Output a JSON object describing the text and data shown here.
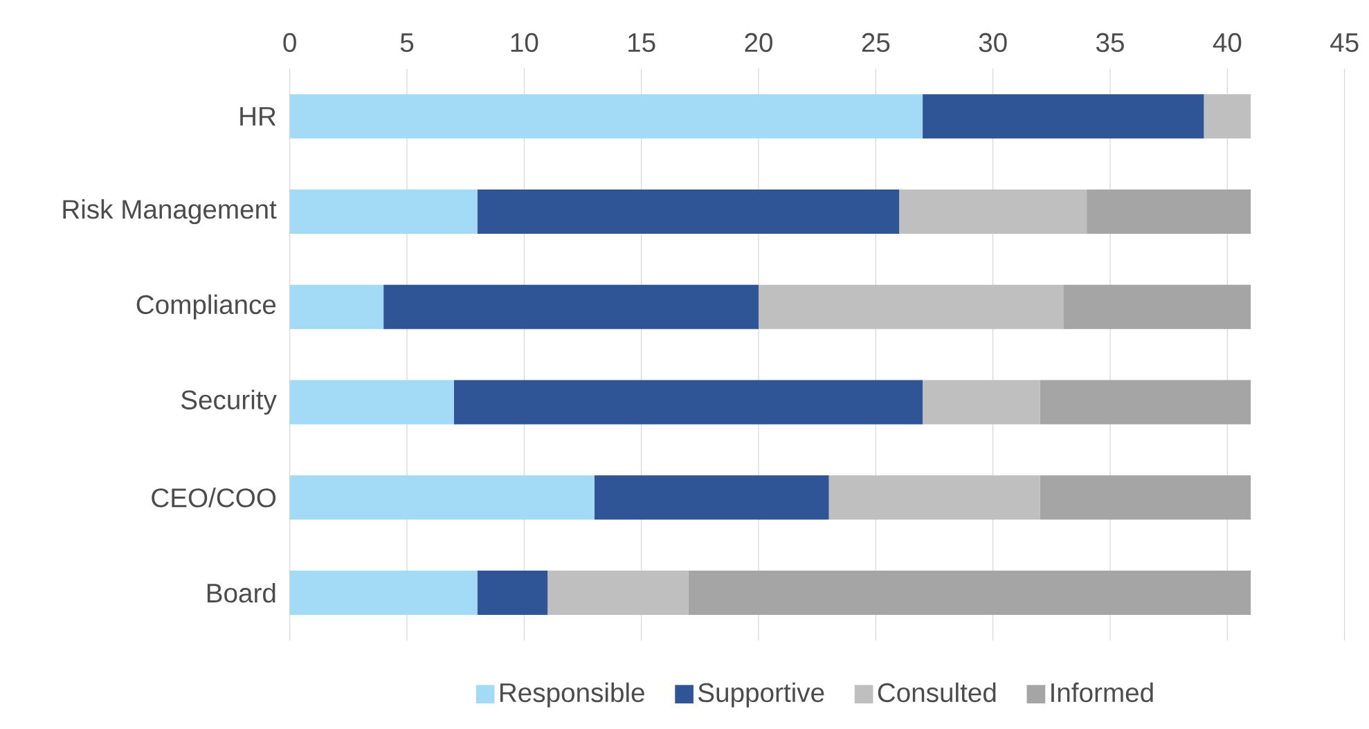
{
  "chart_data": {
    "type": "bar",
    "orientation": "horizontal",
    "stacked": true,
    "categories": [
      "HR",
      "Risk Management",
      "Compliance",
      "Security",
      "CEO/COO",
      "Board"
    ],
    "series": [
      {
        "name": "Responsible",
        "color": "#a3dbf7",
        "values": [
          27,
          8,
          4,
          7,
          13,
          8
        ]
      },
      {
        "name": "Supportive",
        "color": "#2f5597",
        "values": [
          12,
          18,
          16,
          20,
          10,
          3
        ]
      },
      {
        "name": "Consulted",
        "color": "#bfbfbf",
        "values": [
          2,
          8,
          13,
          5,
          9,
          6
        ]
      },
      {
        "name": "Informed",
        "color": "#a5a5a5",
        "values": [
          0,
          7,
          8,
          9,
          9,
          24
        ]
      }
    ],
    "xlim": [
      0,
      45
    ],
    "xticks": [
      0,
      5,
      10,
      15,
      20,
      25,
      30,
      35,
      40,
      45
    ],
    "grid": "x",
    "legend": "bottom"
  }
}
